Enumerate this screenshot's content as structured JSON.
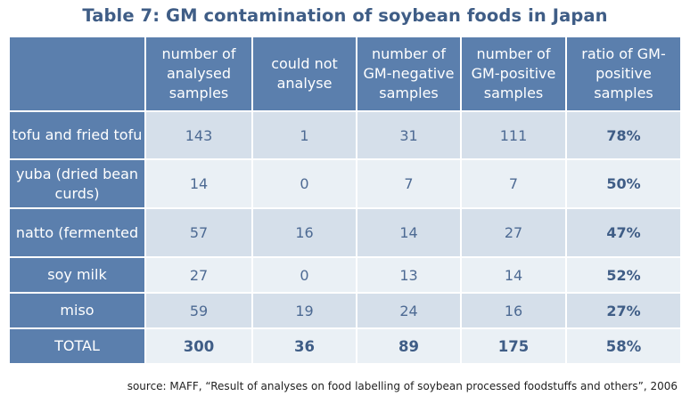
{
  "title": "Table 7: GM contamination of soybean foods in Japan",
  "headers": [
    "",
    "number of analysed samples",
    "could not analyse",
    "number of GM-negative samples",
    "number of GM-positive samples",
    "ratio of GM-positive samples"
  ],
  "rows": [
    {
      "label": "tofu and fried tofu",
      "values": [
        "143",
        "1",
        "31",
        "111",
        "78%"
      ]
    },
    {
      "label": "yuba (dried bean curds)",
      "values": [
        "14",
        "0",
        "7",
        "7",
        "50%"
      ]
    },
    {
      "label": "natto (fermented",
      "values": [
        "57",
        "16",
        "14",
        "27",
        "47%"
      ]
    },
    {
      "label": "soy milk",
      "values": [
        "27",
        "0",
        "13",
        "14",
        "52%"
      ]
    },
    {
      "label": "miso",
      "values": [
        "59",
        "19",
        "24",
        "16",
        "27%"
      ]
    },
    {
      "label": "TOTAL",
      "values": [
        "300",
        "36",
        "89",
        "175",
        "58%"
      ]
    }
  ],
  "source": "source: MAFF, “Result of analyses on food labelling of soybean processed foodstuffs and others”, 2006"
}
